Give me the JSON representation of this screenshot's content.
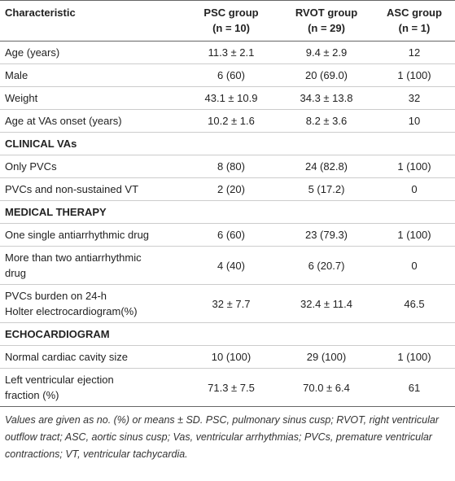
{
  "table": {
    "header": [
      [
        "Characteristic"
      ],
      [
        "PSC group",
        "(n = 10)"
      ],
      [
        "RVOT group",
        "(n = 29)"
      ],
      [
        "ASC group",
        "(n = 1)"
      ]
    ],
    "rows": [
      {
        "label": [
          "Age (years)"
        ],
        "values": [
          "11.3 ± 2.1",
          "9.4 ± 2.9",
          "12"
        ]
      },
      {
        "label": [
          "Male"
        ],
        "values": [
          "6 (60)",
          "20 (69.0)",
          "1 (100)"
        ]
      },
      {
        "label": [
          "Weight"
        ],
        "values": [
          "43.1 ± 10.9",
          "34.3 ± 13.8",
          "32"
        ]
      },
      {
        "label": [
          "Age at VAs onset (years)"
        ],
        "values": [
          "10.2 ± 1.6",
          "8.2 ± 3.6",
          "10"
        ]
      },
      {
        "section": "CLINICAL VAs"
      },
      {
        "label": [
          "Only PVCs"
        ],
        "values": [
          "8 (80)",
          "24 (82.8)",
          "1 (100)"
        ]
      },
      {
        "label": [
          "PVCs and non-sustained VT"
        ],
        "values": [
          "2 (20)",
          "5 (17.2)",
          "0"
        ]
      },
      {
        "section": "MEDICAL THERAPY"
      },
      {
        "label": [
          "One single antiarrhythmic drug"
        ],
        "values": [
          "6 (60)",
          "23 (79.3)",
          "1 (100)"
        ]
      },
      {
        "label": [
          "More than two antiarrhythmic",
          "drug"
        ],
        "values": [
          "4 (40)",
          "6 (20.7)",
          "0"
        ]
      },
      {
        "label": [
          "PVCs burden on 24-h",
          "Holter electrocardiogram(%)"
        ],
        "values": [
          "32 ± 7.7",
          "32.4 ± 11.4",
          "46.5"
        ]
      },
      {
        "section": "ECHOCARDIOGRAM"
      },
      {
        "label": [
          "Normal cardiac cavity size"
        ],
        "values": [
          "10 (100)",
          "29 (100)",
          "1 (100)"
        ]
      },
      {
        "label": [
          "Left ventricular ejection",
          "fraction (%)"
        ],
        "values": [
          "71.3 ± 7.5",
          "70.0 ± 6.4",
          "61"
        ]
      }
    ],
    "footnote": "Values are given as no. (%) or means ± SD. PSC, pulmonary sinus cusp; RVOT, right ventricular outflow tract; ASC, aortic sinus cusp; Vas, ventricular arrhythmias; PVCs, premature ventricular contractions; VT, ventricular tachycardia."
  }
}
